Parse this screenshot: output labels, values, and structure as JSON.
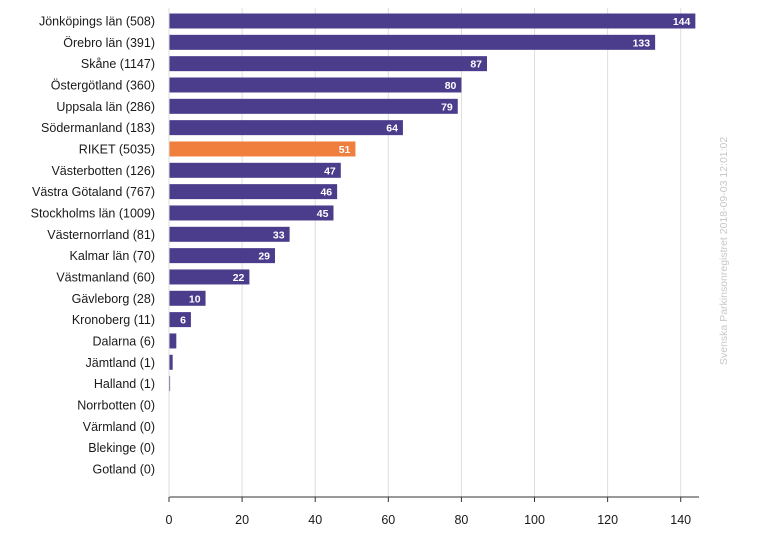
{
  "chart_data": {
    "type": "bar",
    "orientation": "horizontal",
    "categories": [
      "Jönköpings län (508)",
      "Örebro län (391)",
      "Skåne (1147)",
      "Östergötland (360)",
      "Uppsala län (286)",
      "Södermanland (183)",
      "RIKET (5035)",
      "Västerbotten (126)",
      "Västra Götaland (767)",
      "Stockholms län (1009)",
      "Västernorrland (81)",
      "Kalmar län (70)",
      "Västmanland (60)",
      "Gävleborg (28)",
      "Kronoberg (11)",
      "Dalarna (6)",
      "Jämtland (1)",
      "Halland (1)",
      "Norrbotten (0)",
      "Värmland (0)",
      "Blekinge (0)",
      "Gotland (0)"
    ],
    "values": [
      144,
      133,
      87,
      80,
      79,
      64,
      51,
      47,
      46,
      45,
      33,
      29,
      22,
      10,
      6,
      2,
      1,
      0.3,
      0,
      0,
      0,
      0
    ],
    "data_labels": [
      "144",
      "133",
      "87",
      "80",
      "79",
      "64",
      "51",
      "47",
      "46",
      "45",
      "33",
      "29",
      "22",
      "10",
      "6",
      "",
      "",
      "",
      "",
      "",
      "",
      ""
    ],
    "highlight_category": "RIKET (5035)",
    "xlim": [
      0,
      145
    ],
    "xticks": [
      0,
      20,
      40,
      60,
      80,
      100,
      120,
      140
    ],
    "grid": true,
    "title": "",
    "xlabel": "",
    "ylabel": "",
    "colors": {
      "bar": "#4b3c8c",
      "highlight": "#f07e3c",
      "grid": "#dedede",
      "axis": "#333333"
    }
  },
  "watermark": "Svenska Parkinsonregistret 2018-09-03 12:01:02"
}
